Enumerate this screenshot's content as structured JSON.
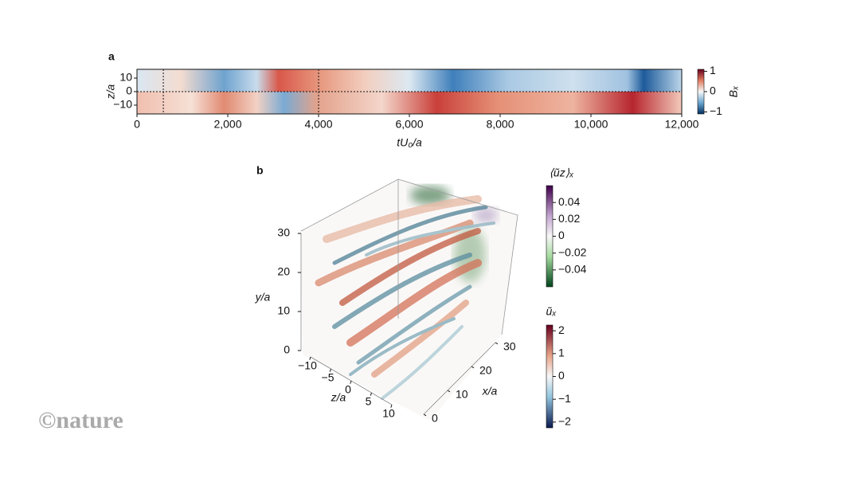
{
  "chart_data": [
    {
      "type": "heatmap",
      "panel_label": "a",
      "x_label": "tU₀/a",
      "y_label": "z/a",
      "xlim": [
        0,
        12000
      ],
      "xticks": [
        0,
        {
          "value": 2000,
          "label": "2,000"
        },
        {
          "value": 4000,
          "label": "4,000"
        },
        {
          "value": 6000,
          "label": "6,000"
        },
        {
          "value": 8000,
          "label": "8,000"
        },
        {
          "value": 10000,
          "label": "10,000"
        },
        {
          "value": 12000,
          "label": "12,000"
        }
      ],
      "ylim": [
        -16.5,
        16.5
      ],
      "yticks": [
        10,
        0,
        {
          "value": -10,
          "label": "−10"
        }
      ],
      "dashed_x": [
        580,
        4000
      ],
      "dashed_y": [
        0
      ],
      "colorbar": {
        "label": "Bₓ",
        "lim": [
          -1.1,
          1.1
        ],
        "ticks": [
          1,
          0,
          {
            "value": -1,
            "label": "−1"
          }
        ]
      }
    },
    {
      "type": "volume3d",
      "panel_label": "b",
      "axes": {
        "x": {
          "label": "x/a",
          "lim": [
            0,
            30
          ],
          "ticks": [
            0,
            10,
            20,
            30
          ]
        },
        "y": {
          "label": "y/a",
          "lim": [
            0,
            30
          ],
          "ticks": [
            0,
            10,
            20,
            30
          ]
        },
        "z": {
          "label": "z/a",
          "lim": [
            -10,
            10
          ],
          "ticks": [
            {
              "value": -10,
              "label": "−10"
            },
            {
              "value": -5,
              "label": "−5"
            },
            0,
            5,
            10
          ]
        }
      },
      "colorbars": [
        {
          "label": "⟨ũz⟩ₓ",
          "lim": [
            -0.06,
            0.06
          ],
          "ticks": [
            0.04,
            0.02,
            0,
            {
              "value": -0.02,
              "label": "−0.02"
            },
            {
              "value": -0.04,
              "label": "−0.04"
            }
          ]
        },
        {
          "label": "ũₓ",
          "lim": [
            -2.25,
            2.25
          ],
          "ticks": [
            2,
            1,
            0,
            {
              "value": -1,
              "label": "−1"
            },
            {
              "value": -2,
              "label": "−2"
            }
          ]
        }
      ]
    }
  ],
  "watermark": "©nature"
}
